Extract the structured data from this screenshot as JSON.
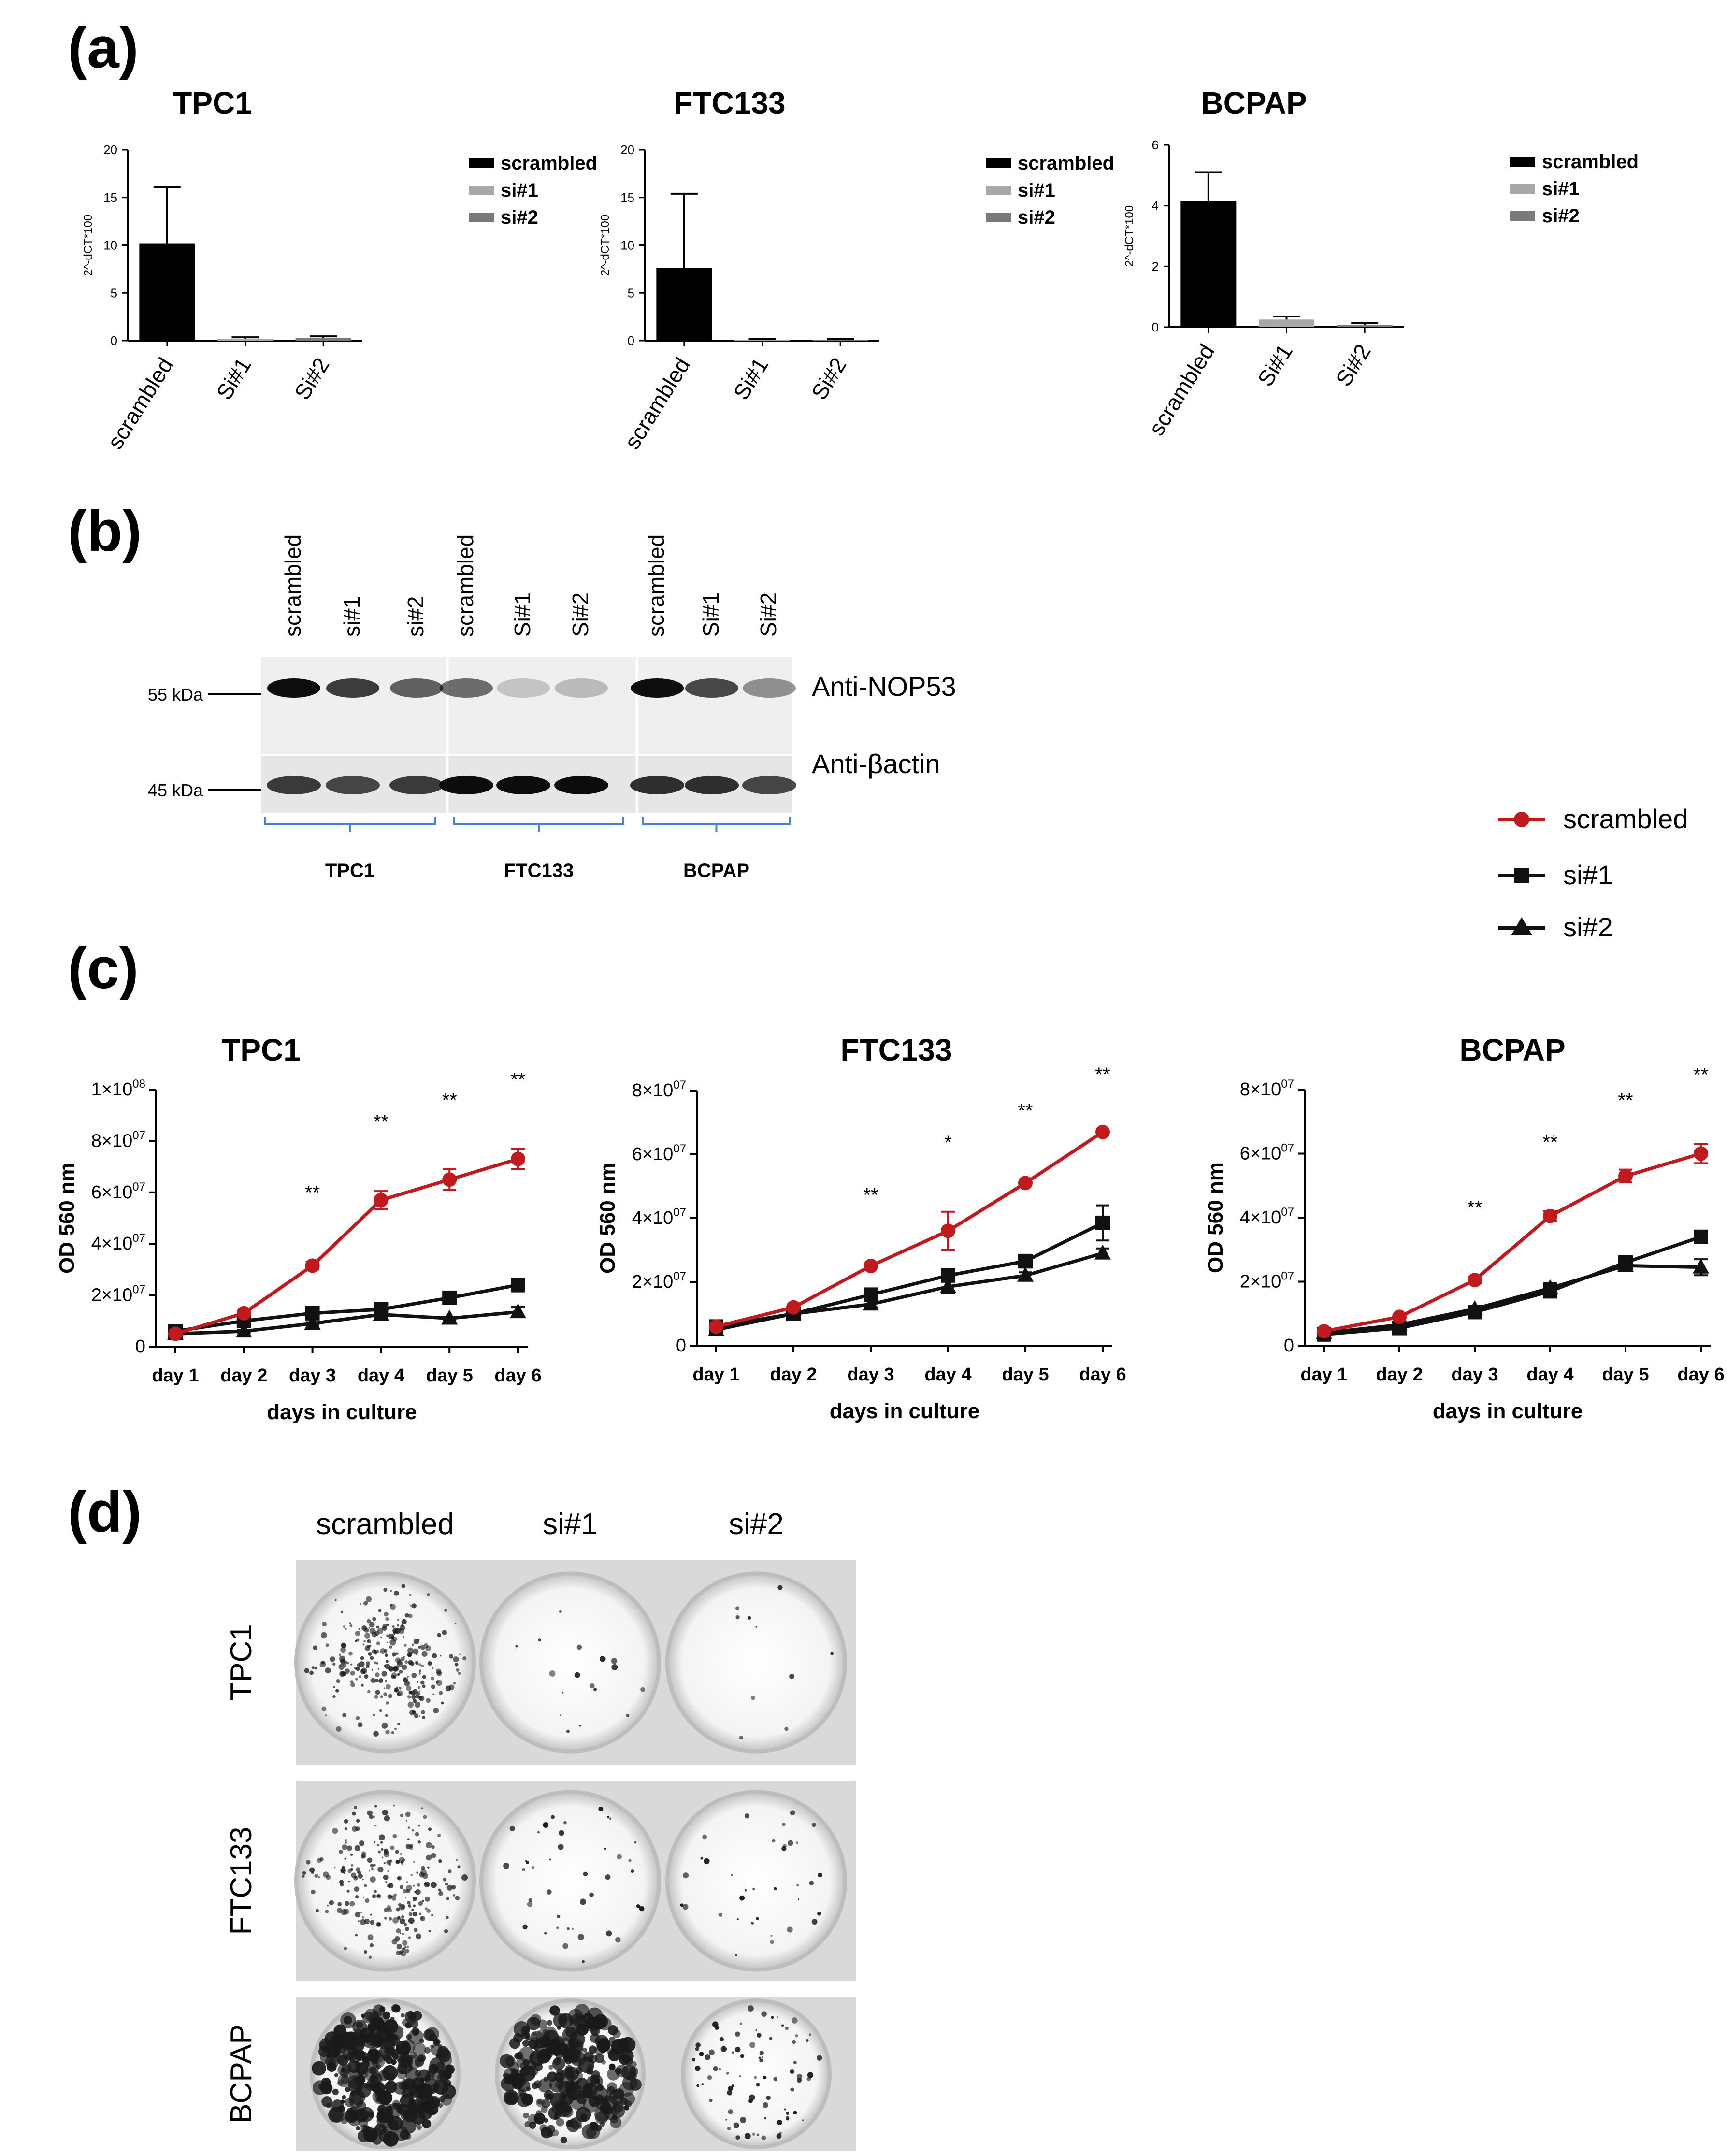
{
  "panels": {
    "a": "(a)",
    "b": "(b)",
    "c": "(c)",
    "d": "(d)"
  },
  "colors": {
    "scrambled_line": "#c0191e",
    "si_line": "#111111",
    "bar_scrambled": "#000000",
    "bar_si1": "#a8a8a8",
    "bar_si2": "#7a7a7a",
    "blot_bracket": "#4a7fd8"
  },
  "bar_charts": [
    {
      "type": "bar",
      "title": "TPC1",
      "ylabel": "2^-dCT*100",
      "ylim": [
        0,
        20
      ],
      "yticks": [
        "0",
        "5",
        "10",
        "15",
        "20"
      ],
      "categories": [
        "scrambled",
        "Si#1",
        "Si#2"
      ],
      "values": [
        10.2,
        0.2,
        0.3
      ],
      "errors": [
        5.9,
        0.15,
        0.15
      ],
      "legend": [
        "scrambled",
        "si#1",
        "si#2"
      ]
    },
    {
      "type": "bar",
      "title": "FTC133",
      "ylabel": "2^-dCT*100",
      "ylim": [
        0,
        20
      ],
      "yticks": [
        "0",
        "5",
        "10",
        "15",
        "20"
      ],
      "categories": [
        "scrambled",
        "Si#1",
        "Si#2"
      ],
      "values": [
        7.6,
        0.1,
        0.1
      ],
      "errors": [
        7.8,
        0.05,
        0.05
      ],
      "legend": [
        "scrambled",
        "si#1",
        "si#2"
      ]
    },
    {
      "type": "bar",
      "title": "BCPAP",
      "ylabel": "2^-dCT*100",
      "ylim": [
        0,
        6
      ],
      "yticks": [
        "0",
        "2",
        "4",
        "6"
      ],
      "categories": [
        "scrambled",
        "Si#1",
        "Si#2"
      ],
      "values": [
        4.15,
        0.25,
        0.08
      ],
      "errors": [
        0.95,
        0.1,
        0.05
      ],
      "legend": [
        "scrambled",
        "si#1",
        "si#2"
      ]
    }
  ],
  "blot": {
    "lanes": [
      "scrambled",
      "si#1",
      "si#2",
      "scrambled",
      "Si#1",
      "Si#2",
      "scrambled",
      "Si#1",
      "Si#2"
    ],
    "markers": [
      "55 kDa",
      "45 kDa"
    ],
    "antibodies": [
      "Anti-NOP53",
      "Anti-βactin"
    ],
    "groups": [
      "TPC1",
      "FTC133",
      "BCPAP"
    ]
  },
  "line_legend": [
    "scrambled",
    "si#1",
    "si#2"
  ],
  "line_charts": [
    {
      "type": "line",
      "title": "TPC1",
      "xlabel": "days in culture",
      "ylabel": "OD 560 nm",
      "categories": [
        "day 1",
        "day 2",
        "day 3",
        "day 4",
        "day 5",
        "day 6"
      ],
      "ylim": [
        0,
        100000000
      ],
      "yticks": [
        {
          "b": "0",
          "e": ""
        },
        {
          "b": "2×10",
          "e": "07"
        },
        {
          "b": "4×10",
          "e": "07"
        },
        {
          "b": "6×10",
          "e": "07"
        },
        {
          "b": "8×10",
          "e": "07"
        },
        {
          "b": "1×10",
          "e": "08"
        }
      ],
      "series": [
        {
          "name": "scrambled",
          "values": [
            5000000,
            13000000,
            31500000,
            57000000,
            65000000,
            73000000
          ],
          "errors": [
            1000000,
            1000000,
            1500000,
            3500000,
            4000000,
            4000000
          ]
        },
        {
          "name": "si#1",
          "values": [
            6000000,
            10000000,
            13000000,
            14500000,
            19000000,
            24000000
          ],
          "errors": [
            1000000,
            1000000,
            1500000,
            1500000,
            1000000,
            2500000
          ]
        },
        {
          "name": "si#2",
          "values": [
            5000000,
            6000000,
            9000000,
            12500000,
            11000000,
            13500000
          ],
          "errors": [
            500000,
            500000,
            500000,
            1000000,
            500000,
            2000000
          ]
        }
      ],
      "significance": [
        "",
        "",
        "**",
        "**",
        "**",
        "**"
      ]
    },
    {
      "type": "line",
      "title": "FTC133",
      "xlabel": "days in culture",
      "ylabel": "OD 560 nm",
      "categories": [
        "day 1",
        "day 2",
        "day 3",
        "day 4",
        "day 5",
        "day 6"
      ],
      "ylim": [
        0,
        80000000
      ],
      "yticks": [
        {
          "b": "0",
          "e": ""
        },
        {
          "b": "2×10",
          "e": "07"
        },
        {
          "b": "4×10",
          "e": "07"
        },
        {
          "b": "6×10",
          "e": "07"
        },
        {
          "b": "8×10",
          "e": "07"
        }
      ],
      "series": [
        {
          "name": "scrambled",
          "values": [
            6000000,
            12000000,
            25000000,
            36000000,
            51000000,
            67000000
          ],
          "errors": [
            500000,
            500000,
            500000,
            6000000,
            1000000,
            1000000
          ]
        },
        {
          "name": "si#1",
          "values": [
            6000000,
            10000000,
            16000000,
            22000000,
            26500000,
            38500000
          ],
          "errors": [
            500000,
            500000,
            1000000,
            1500000,
            2000000,
            5500000
          ]
        },
        {
          "name": "si#2",
          "values": [
            5000000,
            10000000,
            13000000,
            18500000,
            22000000,
            29000000
          ],
          "errors": [
            500000,
            500000,
            1000000,
            2000000,
            1000000,
            1500000
          ]
        }
      ],
      "significance": [
        "",
        "",
        "**",
        "*",
        "**",
        "**"
      ]
    },
    {
      "type": "line",
      "title": "BCPAP",
      "xlabel": "days in culture",
      "ylabel": "OD 560 nm",
      "categories": [
        "day 1",
        "day 2",
        "day 3",
        "day 4",
        "day 5",
        "day 6"
      ],
      "ylim": [
        0,
        80000000
      ],
      "yticks": [
        {
          "b": "0",
          "e": ""
        },
        {
          "b": "2×10",
          "e": "07"
        },
        {
          "b": "4×10",
          "e": "07"
        },
        {
          "b": "6×10",
          "e": "07"
        },
        {
          "b": "8×10",
          "e": "07"
        }
      ],
      "series": [
        {
          "name": "scrambled",
          "values": [
            4500000,
            9000000,
            20500000,
            40500000,
            53000000,
            60000000
          ],
          "errors": [
            500000,
            500000,
            1000000,
            1500000,
            2000000,
            3000000
          ]
        },
        {
          "name": "si#1",
          "values": [
            3500000,
            5500000,
            10500000,
            17000000,
            26000000,
            34000000
          ],
          "errors": [
            500000,
            500000,
            1000000,
            1500000,
            2000000,
            1000000
          ]
        },
        {
          "name": "si#2",
          "values": [
            4000000,
            6500000,
            11500000,
            18000000,
            25000000,
            24500000
          ],
          "errors": [
            500000,
            500000,
            1000000,
            1500000,
            1500000,
            2500000
          ]
        }
      ],
      "significance": [
        "",
        "",
        "**",
        "**",
        "**",
        "**"
      ]
    }
  ],
  "colony": {
    "columns": [
      "scrambled",
      "si#1",
      "si#2"
    ],
    "rows": [
      "TPC1",
      "FTC133",
      "BCPAP"
    ]
  }
}
